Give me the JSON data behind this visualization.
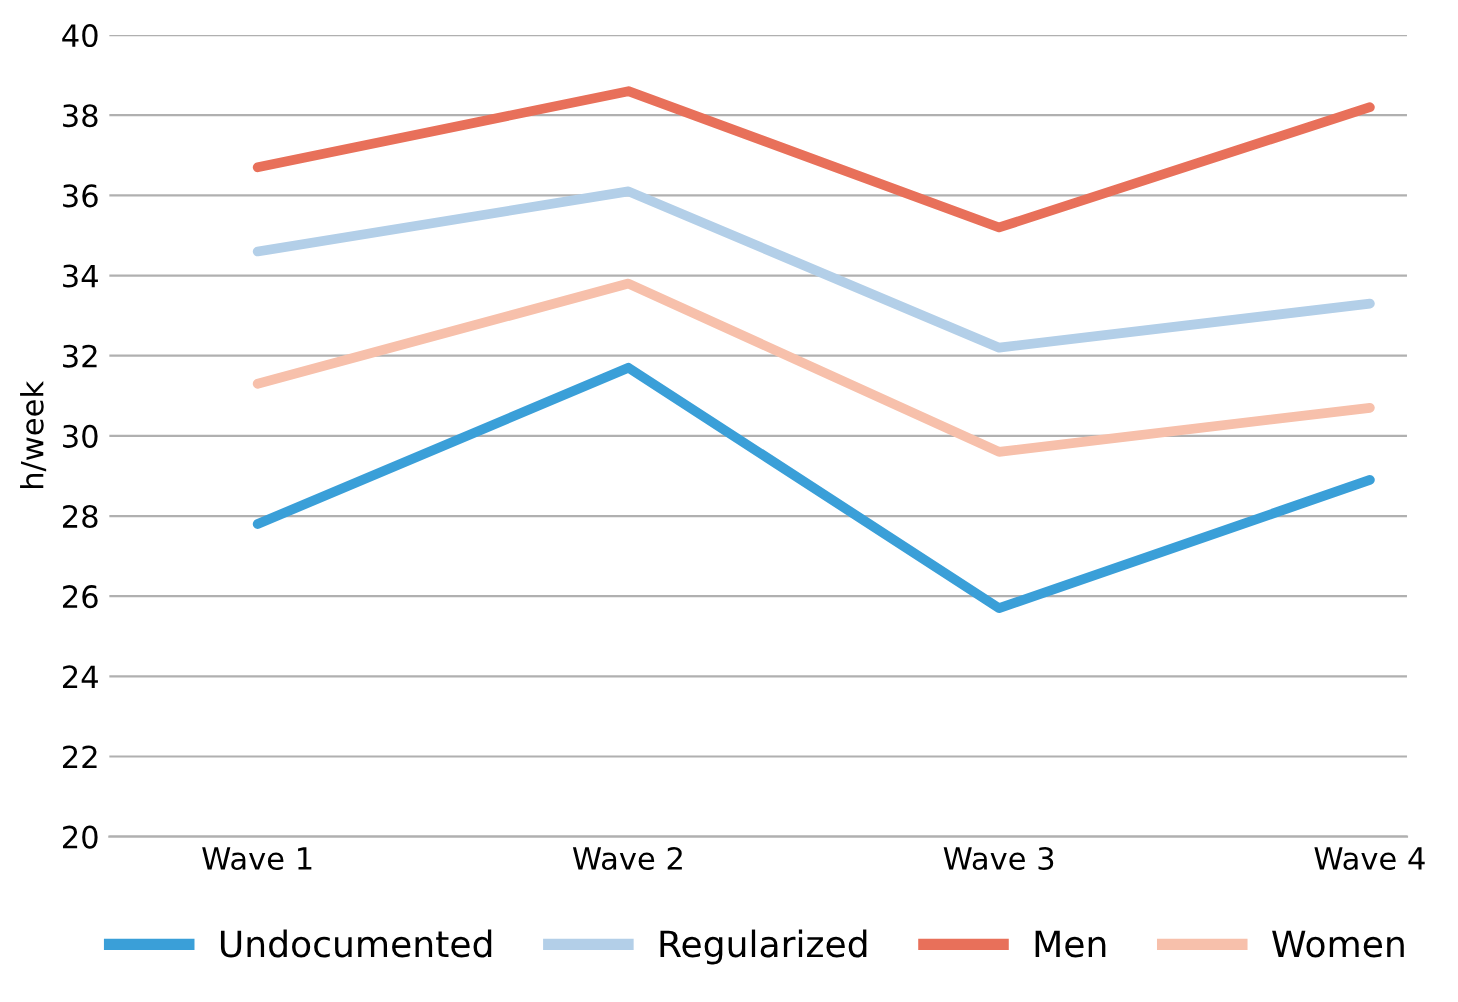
{
  "chart_data": {
    "type": "line",
    "ylabel": "h/week",
    "categories": [
      "Wave 1",
      "Wave 2",
      "Wave 3",
      "Wave 4"
    ],
    "series": [
      {
        "name": "Undocumented",
        "color": "#3a9fd8",
        "values": [
          27.8,
          31.7,
          25.7,
          28.9
        ]
      },
      {
        "name": "Regularized",
        "color": "#b3cfe8",
        "values": [
          34.6,
          36.1,
          32.2,
          33.3
        ]
      },
      {
        "name": "Men",
        "color": "#e8705a",
        "values": [
          36.7,
          38.6,
          35.2,
          38.2
        ]
      },
      {
        "name": "Women",
        "color": "#f7c0ab",
        "values": [
          31.3,
          33.8,
          29.6,
          30.7
        ]
      }
    ],
    "ylim": [
      20,
      40
    ],
    "yticks": [
      20,
      22,
      24,
      26,
      28,
      30,
      32,
      34,
      36,
      38,
      40
    ],
    "grid": "y",
    "legend": "bottom",
    "marker": "none",
    "line_style": "solid"
  }
}
